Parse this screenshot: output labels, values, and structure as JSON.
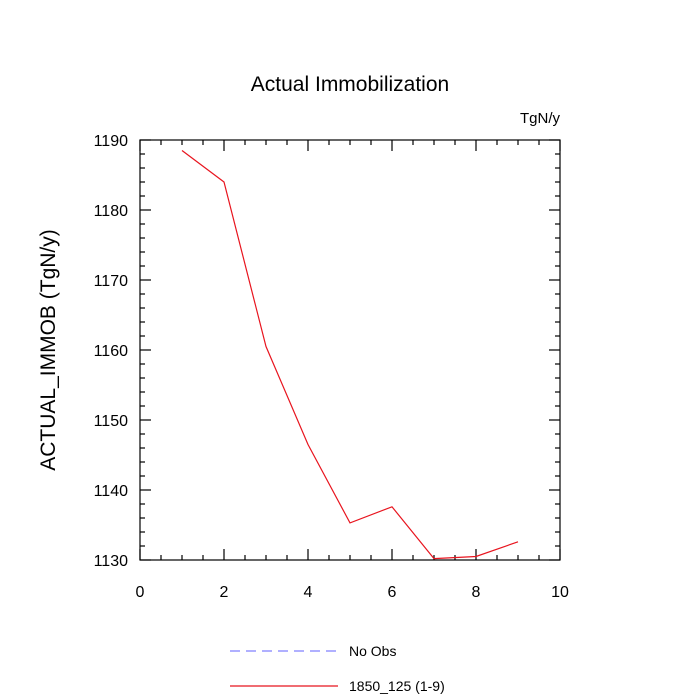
{
  "chart_data": {
    "type": "line",
    "title": "Actual Immobilization",
    "units_label": "TgN/y",
    "xlabel": "",
    "ylabel": "ACTUAL_IMMOB  (TgN/y)",
    "xlim": [
      0,
      10
    ],
    "ylim": [
      1130,
      1190
    ],
    "x_ticks": [
      0,
      2,
      4,
      6,
      8,
      10
    ],
    "y_ticks": [
      1130,
      1140,
      1150,
      1160,
      1170,
      1180,
      1190
    ],
    "grid": false,
    "legend_position": "bottom",
    "series": [
      {
        "name": "No Obs",
        "color": "#8080ff",
        "style": "dashed",
        "x": [],
        "y": []
      },
      {
        "name": "1850_125 (1-9)",
        "color": "#e8141e",
        "style": "solid",
        "x": [
          1,
          2,
          3,
          4,
          5,
          6,
          7,
          8,
          9
        ],
        "y": [
          1188.5,
          1184.0,
          1160.5,
          1146.5,
          1135.3,
          1137.6,
          1130.2,
          1130.5,
          1132.6
        ]
      }
    ]
  }
}
